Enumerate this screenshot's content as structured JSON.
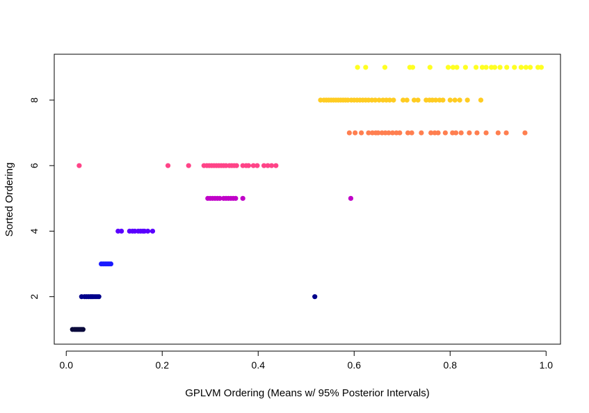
{
  "chart_data": {
    "type": "scatter",
    "title": "",
    "xlabel": "GPLVM Ordering (Means w/ 95% Posterior Intervals)",
    "ylabel": "Sorted Ordering",
    "xlim": [
      -0.025,
      1.03
    ],
    "ylim": [
      0.55,
      9.4
    ],
    "xticks": [
      0.0,
      0.2,
      0.4,
      0.6,
      0.8,
      1.0
    ],
    "xtick_labels": [
      "0.0",
      "0.2",
      "0.4",
      "0.6",
      "0.8",
      "1.0"
    ],
    "yticks": [
      2,
      4,
      6,
      8
    ],
    "ytick_labels": [
      "2",
      "4",
      "6",
      "8"
    ],
    "grid": false,
    "legend": "none",
    "series": [
      {
        "y": 1,
        "color": "#0a0a3c",
        "x": [
          0.013,
          0.017,
          0.02,
          0.023,
          0.026,
          0.029,
          0.032,
          0.035
        ]
      },
      {
        "y": 2,
        "color": "#00008b",
        "x": [
          0.032,
          0.038,
          0.042,
          0.046,
          0.05,
          0.053,
          0.056,
          0.06,
          0.064,
          0.068,
          0.518
        ]
      },
      {
        "y": 3,
        "color": "#1a1aff",
        "x": [
          0.073,
          0.077,
          0.081,
          0.085,
          0.089,
          0.093
        ]
      },
      {
        "y": 4,
        "color": "#5a00ff",
        "x": [
          0.108,
          0.115,
          0.132,
          0.138,
          0.143,
          0.15,
          0.155,
          0.16,
          0.163,
          0.17,
          0.18
        ]
      },
      {
        "y": 5,
        "color": "#c000c8",
        "x": [
          0.295,
          0.3,
          0.305,
          0.31,
          0.315,
          0.32,
          0.328,
          0.333,
          0.338,
          0.343,
          0.348,
          0.353,
          0.368,
          0.593
        ]
      },
      {
        "y": 6,
        "color": "#ff4488",
        "x": [
          0.027,
          0.212,
          0.255,
          0.287,
          0.293,
          0.298,
          0.303,
          0.308,
          0.313,
          0.318,
          0.323,
          0.328,
          0.333,
          0.34,
          0.345,
          0.35,
          0.355,
          0.368,
          0.375,
          0.38,
          0.39,
          0.398,
          0.412,
          0.42,
          0.428,
          0.437
        ]
      },
      {
        "y": 7,
        "color": "#ff7f50",
        "x": [
          0.59,
          0.602,
          0.615,
          0.63,
          0.638,
          0.645,
          0.65,
          0.658,
          0.665,
          0.672,
          0.68,
          0.688,
          0.695,
          0.712,
          0.72,
          0.74,
          0.76,
          0.768,
          0.775,
          0.79,
          0.805,
          0.812,
          0.823,
          0.84,
          0.856,
          0.875,
          0.9,
          0.917,
          0.956
        ]
      },
      {
        "y": 8,
        "color": "#ffcc22",
        "x": [
          0.53,
          0.537,
          0.542,
          0.547,
          0.552,
          0.557,
          0.562,
          0.567,
          0.572,
          0.577,
          0.582,
          0.587,
          0.594,
          0.6,
          0.606,
          0.612,
          0.618,
          0.624,
          0.63,
          0.637,
          0.644,
          0.652,
          0.66,
          0.667,
          0.674,
          0.682,
          0.702,
          0.71,
          0.725,
          0.733,
          0.75,
          0.757,
          0.763,
          0.77,
          0.778,
          0.785,
          0.8,
          0.81,
          0.82,
          0.836,
          0.864
        ]
      },
      {
        "y": 9,
        "color": "#ffff22",
        "x": [
          0.607,
          0.624,
          0.664,
          0.716,
          0.722,
          0.758,
          0.796,
          0.806,
          0.814,
          0.832,
          0.854,
          0.867,
          0.875,
          0.886,
          0.893,
          0.904,
          0.918,
          0.934,
          0.948,
          0.958,
          0.967,
          0.983,
          0.99
        ]
      }
    ]
  }
}
